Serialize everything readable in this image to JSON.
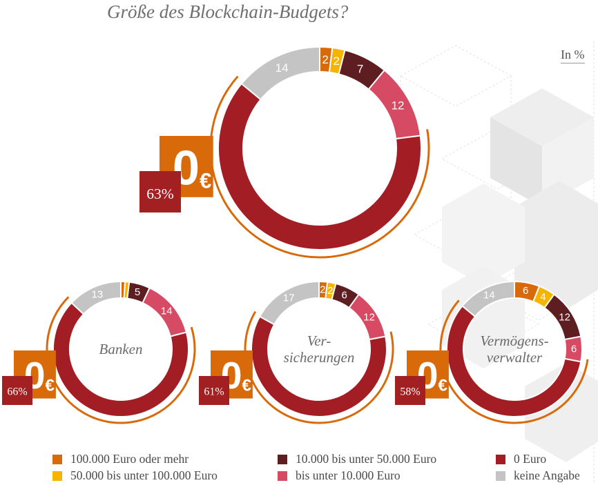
{
  "title": "Größe des Blockchain-Budgets?",
  "unit_label": "In %",
  "colors": {
    "c100k": "#d86a0c",
    "c50k": "#f5b400",
    "c10k": "#5e1d20",
    "cu10k": "#d64b63",
    "c0": "#a31d24",
    "cna": "#c4c4c4",
    "badge_orange": "#d96a0a",
    "badge_red": "#a21f22"
  },
  "badge": {
    "value": "0",
    "currency": "€"
  },
  "legend": [
    {
      "key": "c100k",
      "label": "100.000 Euro oder mehr"
    },
    {
      "key": "c50k",
      "label": "50.000 bis unter 100.000 Euro"
    },
    {
      "key": "c10k",
      "label": "10.000 bis unter 50.000 Euro"
    },
    {
      "key": "cu10k",
      "label": "bis unter 10.000 Euro"
    },
    {
      "key": "c0",
      "label": "0 Euro"
    },
    {
      "key": "cna",
      "label": "keine Angabe"
    }
  ],
  "chart_data": [
    {
      "type": "pie",
      "name": "",
      "center_label": [],
      "categories": [
        "100.000 Euro oder mehr",
        "50.000 bis unter 100.000 Euro",
        "10.000 bis unter 50.000 Euro",
        "bis unter 10.000 Euro",
        "0 Euro",
        "keine Angabe"
      ],
      "values": [
        2,
        2,
        7,
        12,
        63,
        14
      ],
      "labels": [
        "2",
        "2",
        "7",
        "12",
        "",
        "14"
      ],
      "highlight_label": "63%"
    },
    {
      "type": "pie",
      "name": "Banken",
      "center_label": [
        "Banken"
      ],
      "categories": [
        "100.000 Euro oder mehr",
        "50.000 bis unter 100.000 Euro",
        "10.000 bis unter 50.000 Euro",
        "bis unter 10.000 Euro",
        "0 Euro",
        "keine Angabe"
      ],
      "values": [
        1,
        1,
        5,
        14,
        66,
        13
      ],
      "labels": [
        "",
        "",
        "5",
        "14",
        "",
        "13"
      ],
      "highlight_label": "66%"
    },
    {
      "type": "pie",
      "name": "Versicherungen",
      "center_label": [
        "Ver-",
        "sicherungen"
      ],
      "categories": [
        "100.000 Euro oder mehr",
        "50.000 bis unter 100.000 Euro",
        "10.000 bis unter 50.000 Euro",
        "bis unter 10.000 Euro",
        "0 Euro",
        "keine Angabe"
      ],
      "values": [
        2,
        2,
        6,
        12,
        61,
        17
      ],
      "labels": [
        "2",
        "2",
        "6",
        "12",
        "",
        "17"
      ],
      "highlight_label": "61%"
    },
    {
      "type": "pie",
      "name": "Vermögensverwalter",
      "center_label": [
        "Vermögens-",
        "verwalter"
      ],
      "categories": [
        "100.000 Euro oder mehr",
        "50.000 bis unter 100.000 Euro",
        "10.000 bis unter 50.000 Euro",
        "bis unter 10.000 Euro",
        "0 Euro",
        "keine Angabe"
      ],
      "values": [
        6,
        4,
        12,
        6,
        58,
        14
      ],
      "labels": [
        "6",
        "4",
        "12",
        "6",
        "",
        "14"
      ],
      "highlight_label": "58%"
    }
  ]
}
